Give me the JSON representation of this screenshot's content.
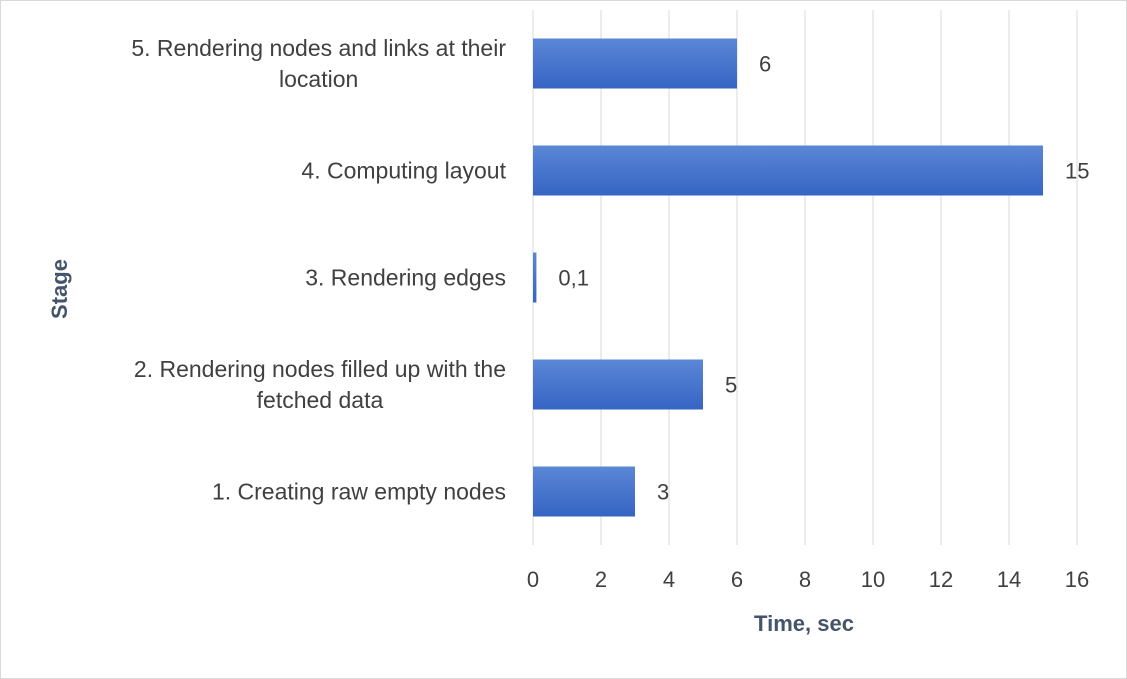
{
  "chart_data": {
    "type": "bar",
    "orientation": "horizontal",
    "title": "",
    "categories": [
      "5. Rendering nodes and links at their location",
      "4. Computing layout",
      "3. Rendering edges",
      "2. Rendering nodes filled up with the fetched data",
      "1. Creating raw empty nodes"
    ],
    "category_lines": [
      [
        "5. Rendering nodes and links at their",
        "location"
      ],
      [
        "4. Computing layout"
      ],
      [
        "3. Rendering edges"
      ],
      [
        "2. Rendering nodes filled up with the",
        "fetched data"
      ],
      [
        "1. Creating raw empty nodes"
      ]
    ],
    "values": [
      6,
      15,
      0.1,
      5,
      3
    ],
    "data_labels": [
      "6",
      "15",
      "0,1",
      "5",
      "3"
    ],
    "xlabel": "Time, sec",
    "ylabel": "Stage",
    "xlim": [
      0,
      16
    ],
    "xticks": [
      0,
      2,
      4,
      6,
      8,
      10,
      12,
      14,
      16
    ],
    "grid": true,
    "legend": "none",
    "bar_color_top": "#5b87d6",
    "bar_color_bottom": "#3564c4"
  }
}
